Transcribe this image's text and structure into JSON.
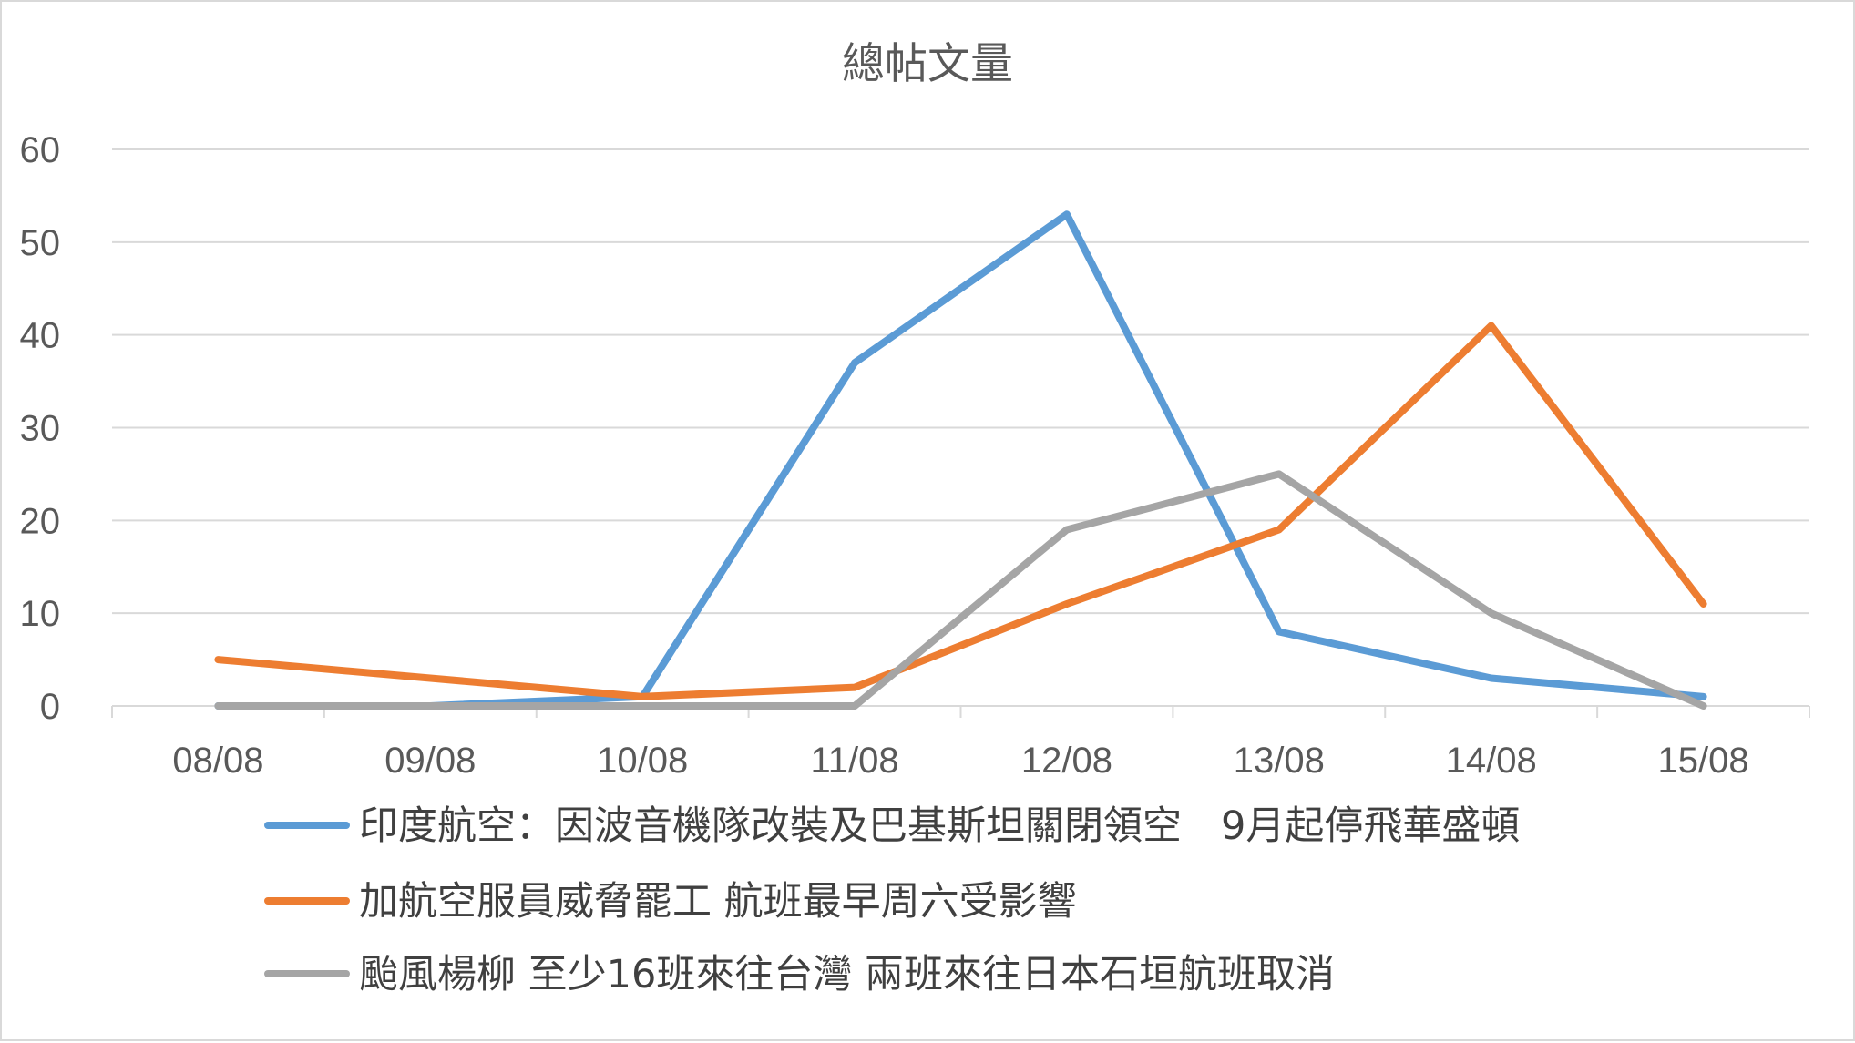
{
  "chart_data": {
    "type": "line",
    "title": "總帖文量",
    "xlabel": "",
    "ylabel": "",
    "categories": [
      "08/08",
      "09/08",
      "10/08",
      "11/08",
      "12/08",
      "13/08",
      "14/08",
      "15/08"
    ],
    "ylim": [
      0,
      60
    ],
    "yticks": [
      0,
      10,
      20,
      30,
      40,
      50,
      60
    ],
    "grid": true,
    "legend_position": "bottom",
    "series": [
      {
        "name": "印度航空：因波音機隊改裝及巴基斯坦關閉領空　9月起停飛華盛頓",
        "color": "#5b9bd5",
        "values": [
          0,
          0,
          1,
          37,
          53,
          8,
          3,
          1
        ]
      },
      {
        "name": "加航空服員威脅罷工 航班最早周六受影響",
        "color": "#ed7d31",
        "values": [
          5,
          3,
          1,
          2,
          11,
          19,
          41,
          11
        ]
      },
      {
        "name": "颱風楊柳 至少16班來往台灣 兩班來往日本石垣航班取消",
        "color": "#a5a5a5",
        "values": [
          0,
          0,
          0,
          0,
          19,
          25,
          10,
          0
        ]
      }
    ]
  }
}
